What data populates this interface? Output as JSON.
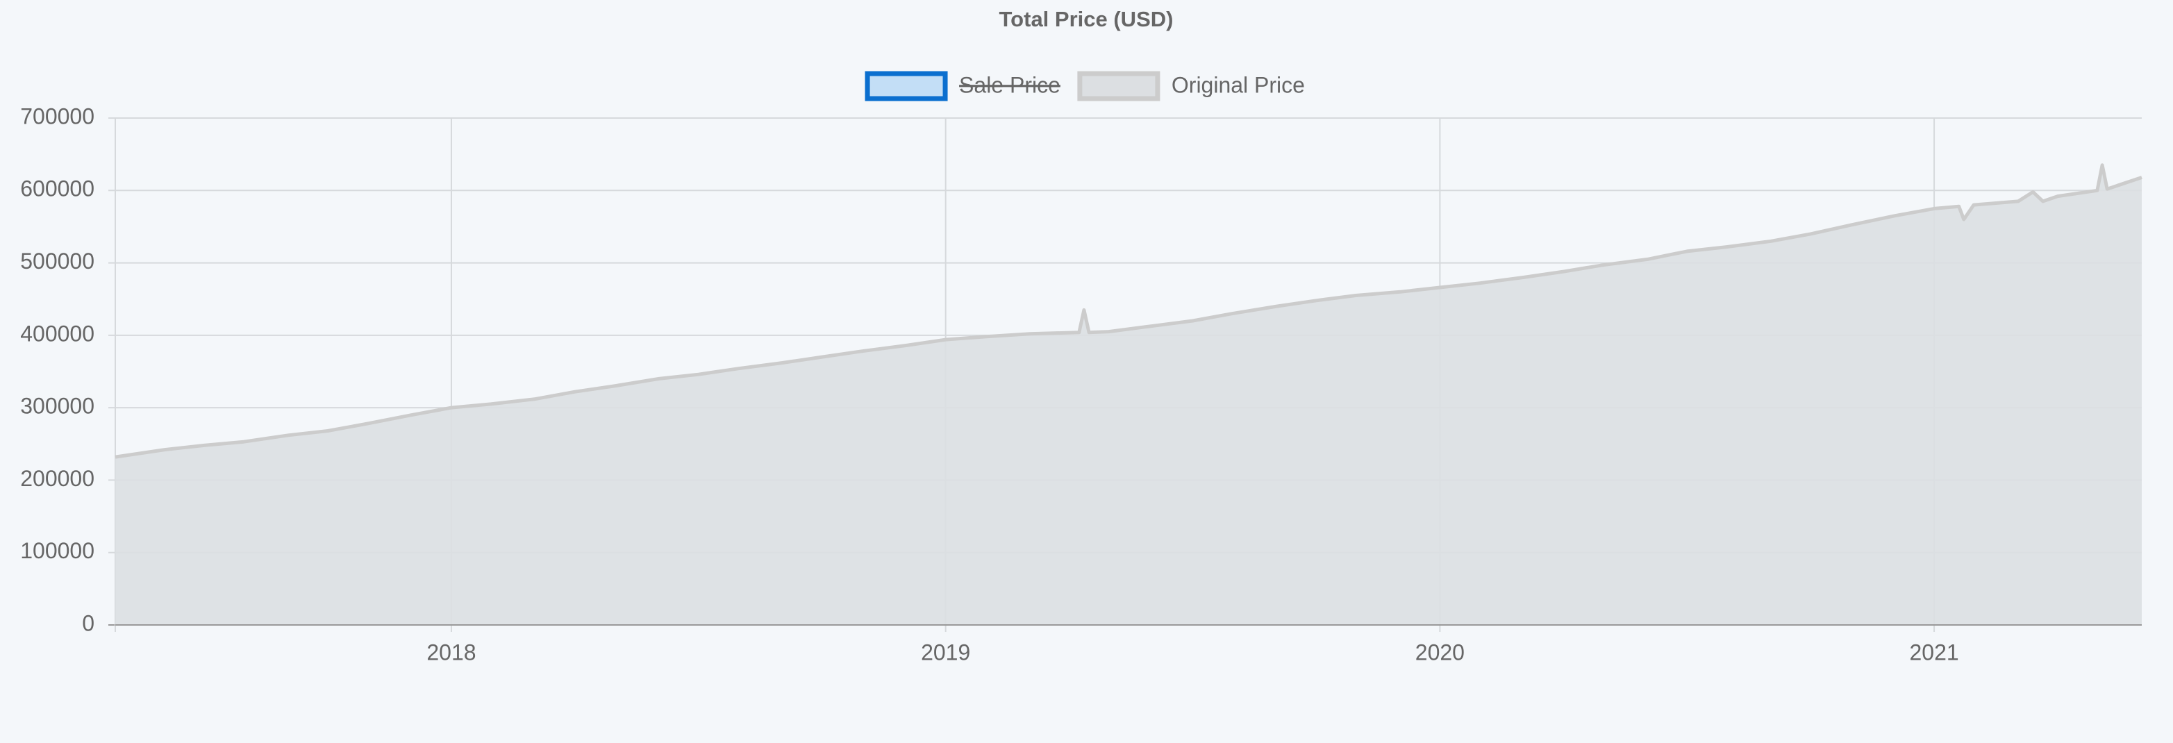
{
  "chart_data": {
    "type": "area",
    "title": "Total Price (USD)",
    "x": [
      2017.32,
      2017.42,
      2017.5,
      2017.58,
      2017.67,
      2017.75,
      2017.83,
      2017.92,
      2018.0,
      2018.08,
      2018.17,
      2018.25,
      2018.33,
      2018.42,
      2018.5,
      2018.58,
      2018.67,
      2018.75,
      2018.83,
      2018.92,
      2019.0,
      2019.08,
      2019.17,
      2019.27,
      2019.28,
      2019.29,
      2019.33,
      2019.42,
      2019.5,
      2019.58,
      2019.67,
      2019.75,
      2019.83,
      2019.92,
      2020.0,
      2020.08,
      2020.17,
      2020.25,
      2020.33,
      2020.42,
      2020.5,
      2020.58,
      2020.67,
      2020.75,
      2020.83,
      2020.92,
      2021.0,
      2021.05,
      2021.06,
      2021.08,
      2021.17,
      2021.2,
      2021.22,
      2021.25,
      2021.33,
      2021.34,
      2021.35,
      2021.42
    ],
    "series": [
      {
        "name": "Sale Price",
        "color": "#0b6fcf",
        "fill": "#c3def6",
        "hidden": true,
        "values": [
          null,
          null,
          null,
          null,
          null,
          null,
          null,
          null,
          null,
          null,
          null,
          null,
          null,
          null,
          null,
          null,
          null,
          null,
          null,
          null,
          null,
          null,
          null,
          null,
          null,
          null,
          null,
          null,
          null,
          null,
          null,
          null,
          null,
          null,
          null,
          null,
          null,
          null,
          null,
          null,
          null,
          null,
          null,
          null,
          null,
          null,
          null,
          null,
          null,
          null,
          null,
          null,
          null,
          null,
          null,
          null,
          null,
          null
        ]
      },
      {
        "name": "Original Price",
        "color": "#cccccc",
        "fill": "#dcdfe2",
        "hidden": false,
        "values": [
          232000,
          242000,
          248000,
          253000,
          262000,
          268000,
          278000,
          290000,
          300000,
          305000,
          312000,
          322000,
          330000,
          340000,
          346000,
          354000,
          362000,
          370000,
          378000,
          386000,
          394000,
          398000,
          402000,
          404000,
          435000,
          404000,
          405000,
          413000,
          420000,
          430000,
          440000,
          448000,
          455000,
          460000,
          466000,
          472000,
          480000,
          488000,
          497000,
          505000,
          516000,
          522000,
          530000,
          540000,
          552000,
          565000,
          575000,
          578000,
          560000,
          580000,
          585000,
          598000,
          585000,
          592000,
          600000,
          635000,
          602000,
          618000
        ]
      }
    ],
    "xlim": [
      2017.32,
      2021.42
    ],
    "xticks": [
      2018,
      2019,
      2020,
      2021
    ],
    "ylim": [
      0,
      700000
    ],
    "yticks": [
      0,
      100000,
      200000,
      300000,
      400000,
      500000,
      600000,
      700000
    ],
    "grid": true,
    "legend": "top"
  }
}
